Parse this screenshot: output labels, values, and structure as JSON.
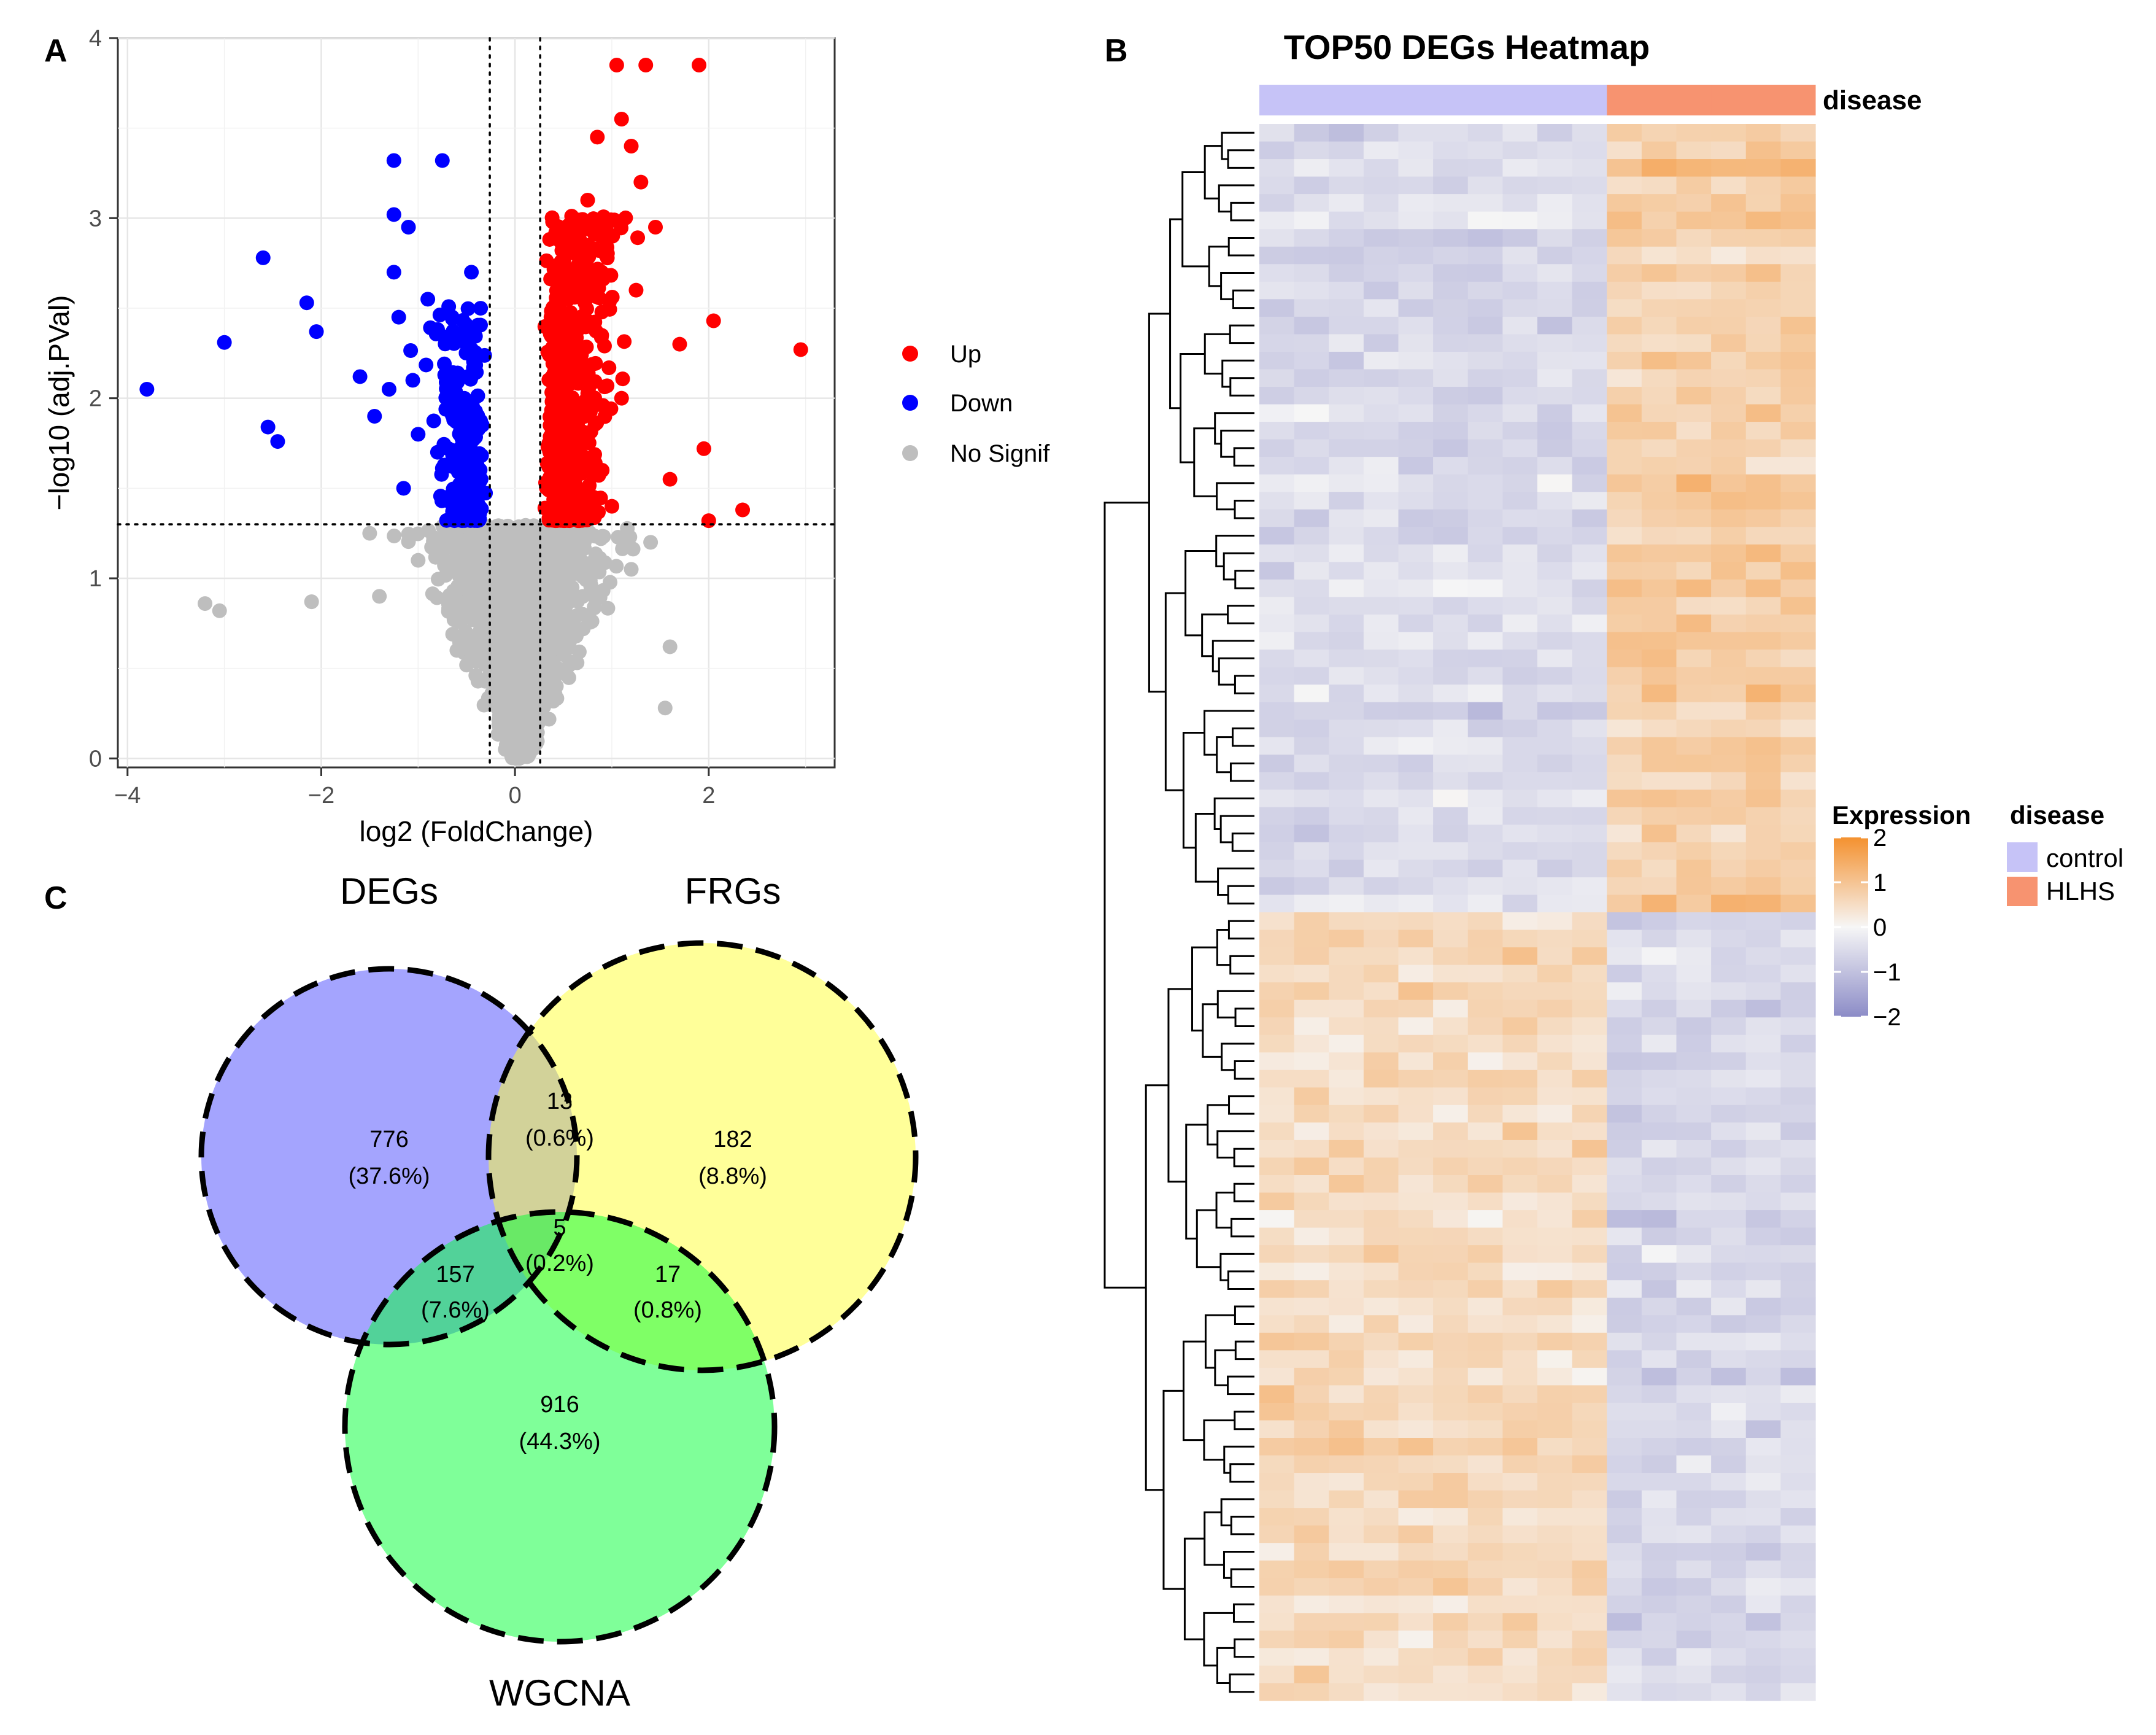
{
  "panels": {
    "a": "A",
    "b": "B",
    "c": "C"
  },
  "colors": {
    "up": "#ff0000",
    "down": "#0000ff",
    "nosig": "#bebebe",
    "control": "#c6c3f7",
    "hlhs": "#f79370",
    "low": "#8c8cc7",
    "mid": "#f6f6f6",
    "high": "#f4912f",
    "venn_degs": "#4a4afe",
    "venn_frgs": "#ffff33",
    "venn_wgcna": "#00ff33"
  },
  "chart_data": [
    {
      "type": "scatter",
      "xlabel": "log2 (FoldChange)",
      "ylabel": "−log10 (adj.PVal)",
      "xlim": [
        -4.1,
        3.3
      ],
      "ylim": [
        -0.05,
        4.0
      ],
      "x_ticks": [
        -4,
        -2,
        0,
        2
      ],
      "x_tick_labels": [
        "−4",
        "−2",
        "0",
        "2"
      ],
      "y_ticks": [
        0,
        1,
        2,
        3,
        4
      ],
      "y_tick_labels": [
        "0",
        "1",
        "2",
        "3",
        "4"
      ],
      "thresholds": {
        "logfc": 0.26,
        "neglog10p": 1.3
      },
      "legend": [
        "Up",
        "Down",
        "No Signif"
      ],
      "series": [
        {
          "name": "Up",
          "points": [
            [
              1.05,
              3.85
            ],
            [
              1.35,
              3.85
            ],
            [
              1.9,
              3.85
            ],
            [
              1.1,
              3.55
            ],
            [
              0.85,
              3.45
            ],
            [
              1.2,
              3.4
            ],
            [
              1.3,
              3.2
            ],
            [
              0.75,
              3.1
            ],
            [
              1.45,
              2.95
            ],
            [
              2.95,
              2.27
            ],
            [
              2.05,
              2.43
            ],
            [
              1.95,
              1.72
            ],
            [
              2.35,
              1.38
            ],
            [
              2.0,
              1.32
            ],
            [
              1.6,
              1.55
            ],
            [
              0.55,
              2.2
            ],
            [
              0.65,
              1.9
            ],
            [
              0.9,
              1.6
            ],
            [
              1.1,
              2.0
            ],
            [
              0.4,
              1.5
            ],
            [
              1.25,
              2.6
            ],
            [
              0.7,
              2.75
            ],
            [
              1.7,
              2.3
            ],
            [
              1.0,
              1.4
            ],
            [
              0.35,
              1.75
            ]
          ]
        },
        {
          "name": "Down",
          "points": [
            [
              -3.8,
              2.05
            ],
            [
              -2.6,
              2.78
            ],
            [
              -3.0,
              2.31
            ],
            [
              -2.15,
              2.53
            ],
            [
              -2.05,
              2.37
            ],
            [
              -2.45,
              1.76
            ],
            [
              -2.55,
              1.84
            ],
            [
              -1.25,
              3.32
            ],
            [
              -0.75,
              3.32
            ],
            [
              -1.25,
              3.02
            ],
            [
              -1.1,
              2.95
            ],
            [
              -1.25,
              2.7
            ],
            [
              -0.45,
              2.7
            ],
            [
              -1.2,
              2.45
            ],
            [
              -0.9,
              2.55
            ],
            [
              -1.3,
              2.05
            ],
            [
              -1.6,
              2.12
            ],
            [
              -0.6,
              2.0
            ],
            [
              -0.35,
              1.55
            ],
            [
              -1.0,
              1.8
            ],
            [
              -0.7,
              1.45
            ],
            [
              -1.45,
              1.9
            ],
            [
              -0.5,
              2.3
            ],
            [
              -0.8,
              1.7
            ],
            [
              -1.15,
              1.5
            ]
          ]
        },
        {
          "name": "No Signif",
          "points": [
            [
              -3.2,
              0.86
            ],
            [
              -3.05,
              0.82
            ],
            [
              -2.1,
              0.87
            ],
            [
              1.55,
              0.28
            ],
            [
              1.6,
              0.62
            ],
            [
              -0.1,
              0.05
            ],
            [
              0.1,
              0.1
            ],
            [
              -0.6,
              0.6
            ],
            [
              0.7,
              0.8
            ],
            [
              -1.0,
              1.1
            ],
            [
              1.2,
              1.05
            ],
            [
              -1.4,
              0.9
            ],
            [
              0.4,
              0.4
            ],
            [
              -0.3,
              0.3
            ],
            [
              1.4,
              1.2
            ],
            [
              -1.5,
              1.25
            ]
          ]
        }
      ]
    },
    {
      "type": "heatmap",
      "title": "TOP50 DEGs Heatmap",
      "annotation_label": "disease",
      "rows": 90,
      "columns": 16,
      "groups": [
        {
          "name": "control",
          "columns": 10
        },
        {
          "name": "HLHS",
          "columns": 6
        }
      ],
      "value_range": [
        -2,
        2
      ],
      "row_blocks": [
        {
          "rows": 45,
          "control_mean": -0.5,
          "hlhs_mean": 0.8
        },
        {
          "rows": 45,
          "control_mean": 0.55,
          "hlhs_mean": -0.6
        }
      ],
      "legend_expression_title": "Expression",
      "legend_disease_title": "disease",
      "legend_ticks": [
        2,
        1,
        0,
        -1,
        -2
      ],
      "legend_tick_labels": [
        "2",
        "1",
        "0",
        "−1",
        "−2"
      ],
      "legend_groups": [
        "control",
        "HLHS"
      ]
    },
    {
      "type": "venn",
      "sets": [
        "DEGs",
        "FRGs",
        "WGCNA"
      ],
      "regions": [
        {
          "name": "DEGs only",
          "value": "776",
          "pct": "(37.6%)"
        },
        {
          "name": "DEGs∩FRGs",
          "value": "13",
          "pct": "(0.6%)"
        },
        {
          "name": "FRGs only",
          "value": "182",
          "pct": "(8.8%)"
        },
        {
          "name": "all three",
          "value": "5",
          "pct": "(0.2%)"
        },
        {
          "name": "DEGs∩WGCNA",
          "value": "157",
          "pct": "(7.6%)"
        },
        {
          "name": "FRGs∩WGCNA",
          "value": "17",
          "pct": "(0.8%)"
        },
        {
          "name": "WGCNA only",
          "value": "916",
          "pct": "(44.3%)"
        }
      ]
    }
  ]
}
